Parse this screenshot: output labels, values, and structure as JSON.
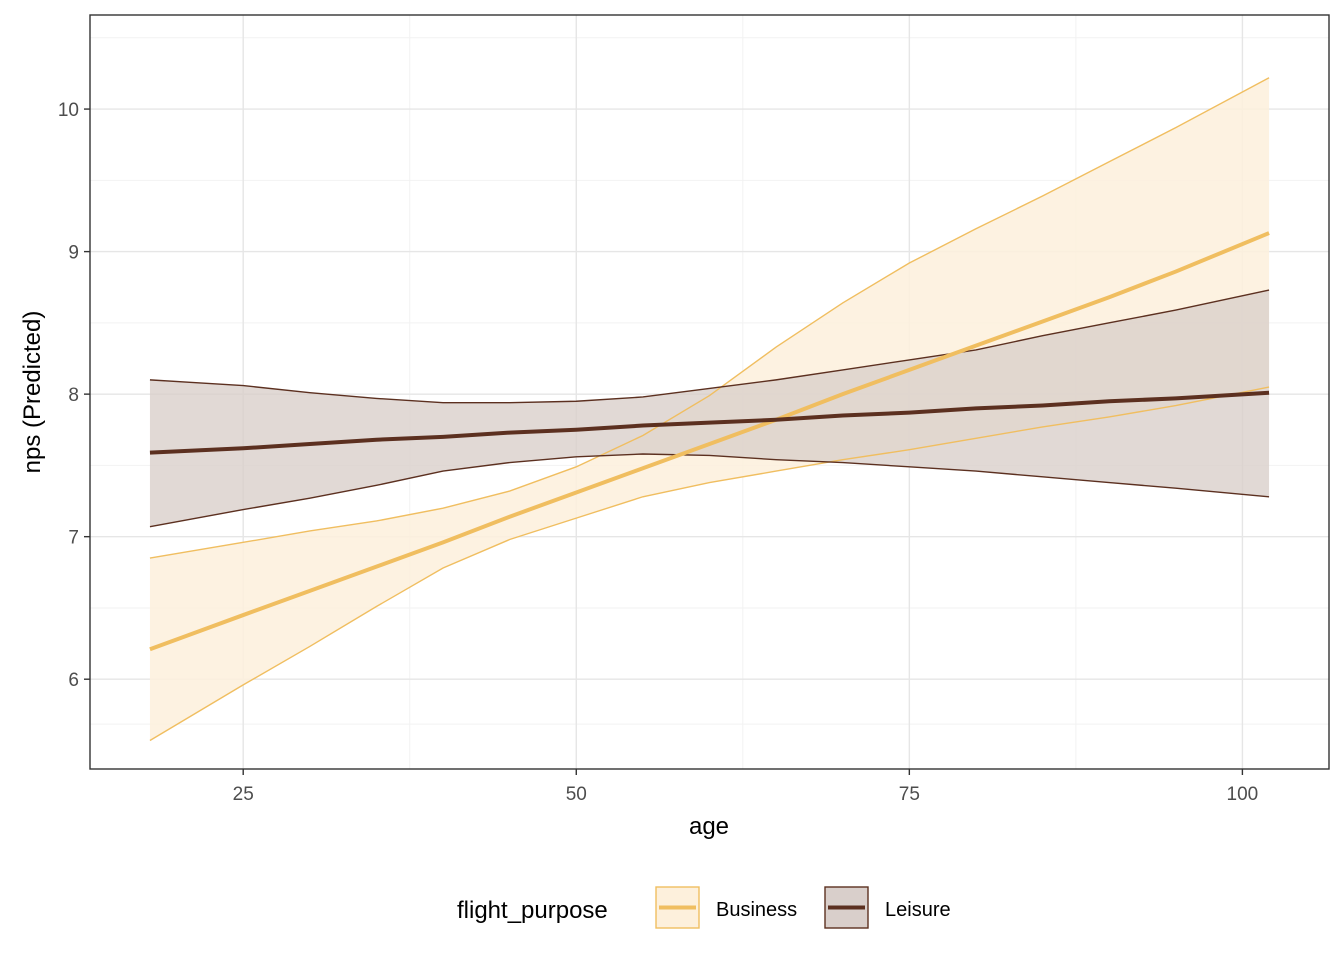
{
  "chart_data": {
    "type": "line",
    "title": "",
    "xlabel": "age",
    "ylabel": "nps (Predicted)",
    "xlim": [
      13.5,
      106.5
    ],
    "ylim": [
      5.37,
      10.66
    ],
    "x_ticks": [
      25,
      50,
      75,
      100
    ],
    "y_ticks": [
      6,
      7,
      8,
      9,
      10
    ],
    "grid": true,
    "legend": {
      "title": "flight_purpose",
      "position": "bottom"
    },
    "x": [
      18,
      25,
      30,
      35,
      40,
      45,
      50,
      55,
      60,
      65,
      70,
      75,
      80,
      85,
      90,
      95,
      102
    ],
    "series": [
      {
        "name": "Business",
        "color": "#F0BE60",
        "fill": "#FDF0DC",
        "values": [
          6.21,
          6.45,
          6.62,
          6.79,
          6.96,
          7.14,
          7.31,
          7.48,
          7.65,
          7.82,
          8.0,
          8.17,
          8.34,
          8.51,
          8.68,
          8.86,
          9.13
        ],
        "lower": [
          5.57,
          5.96,
          6.23,
          6.51,
          6.78,
          6.98,
          7.13,
          7.28,
          7.38,
          7.46,
          7.54,
          7.61,
          7.69,
          7.77,
          7.84,
          7.92,
          8.05
        ],
        "upper": [
          6.85,
          6.96,
          7.04,
          7.11,
          7.2,
          7.32,
          7.49,
          7.71,
          7.99,
          8.33,
          8.64,
          8.92,
          9.16,
          9.39,
          9.63,
          9.87,
          10.22
        ]
      },
      {
        "name": "Leisure",
        "color": "#5C3020",
        "fill": "#D9CFCB",
        "values": [
          7.59,
          7.62,
          7.65,
          7.68,
          7.7,
          7.73,
          7.75,
          7.78,
          7.8,
          7.82,
          7.85,
          7.87,
          7.9,
          7.92,
          7.95,
          7.97,
          8.01
        ],
        "lower": [
          7.07,
          7.19,
          7.27,
          7.36,
          7.46,
          7.52,
          7.56,
          7.58,
          7.57,
          7.54,
          7.52,
          7.49,
          7.46,
          7.42,
          7.38,
          7.34,
          7.28
        ],
        "upper": [
          8.1,
          8.06,
          8.01,
          7.97,
          7.94,
          7.94,
          7.95,
          7.98,
          8.04,
          8.1,
          8.17,
          8.24,
          8.31,
          8.41,
          8.5,
          8.59,
          8.73
        ]
      }
    ]
  }
}
